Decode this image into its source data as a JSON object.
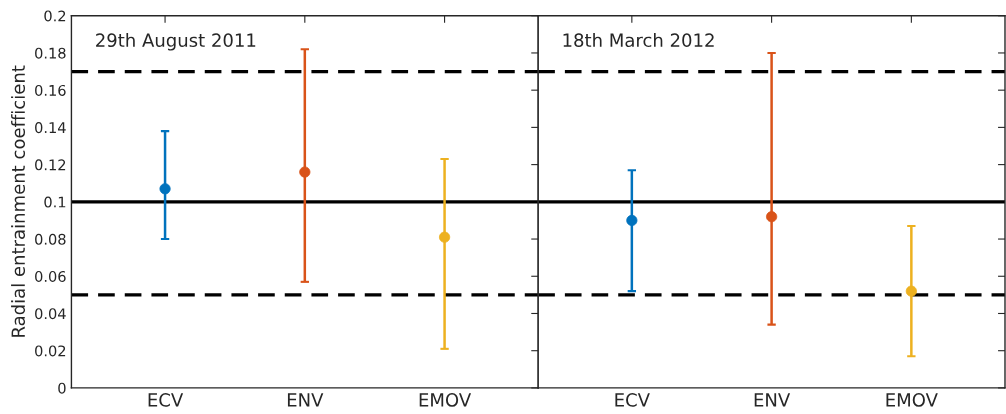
{
  "chart_data": [
    {
      "type": "scatter",
      "title": "29th August 2011",
      "ylabel": "Radial entrainment coefficient",
      "categories": [
        "ECV",
        "ENV",
        "EMOV"
      ],
      "series": [
        {
          "colors": [
            "#0072bd",
            "#d95319",
            "#edb120"
          ],
          "values": [
            0.107,
            0.116,
            0.081
          ],
          "errors": [
            [
              0.08,
              0.138
            ],
            [
              0.057,
              0.182
            ],
            [
              0.021,
              0.123
            ]
          ]
        }
      ],
      "ylim": [
        0,
        0.2
      ],
      "yticks": [
        0,
        0.02,
        0.04,
        0.06,
        0.08,
        0.1,
        0.12,
        0.14,
        0.16,
        0.18,
        0.2
      ],
      "ref_lines": [
        {
          "axis": "y",
          "value": 0.17,
          "color": "#000000",
          "line_style": "dashed"
        },
        {
          "axis": "y",
          "value": 0.1,
          "color": "#000000",
          "line_style": "solid"
        },
        {
          "axis": "y",
          "value": 0.05,
          "color": "#000000",
          "line_style": "dashed"
        }
      ],
      "marker": "circle",
      "grid": false,
      "legend": false
    },
    {
      "type": "scatter",
      "title": "18th March 2012",
      "categories": [
        "ECV",
        "ENV",
        "EMOV"
      ],
      "series": [
        {
          "colors": [
            "#0072bd",
            "#d95319",
            "#edb120"
          ],
          "values": [
            0.09,
            0.092,
            0.052
          ],
          "errors": [
            [
              0.052,
              0.117
            ],
            [
              0.034,
              0.18
            ],
            [
              0.017,
              0.087
            ]
          ]
        }
      ],
      "ylim": [
        0,
        0.2
      ],
      "yticks": [
        0,
        0.02,
        0.04,
        0.06,
        0.08,
        0.1,
        0.12,
        0.14,
        0.16,
        0.18,
        0.2
      ],
      "ref_lines": [
        {
          "axis": "y",
          "value": 0.17,
          "color": "#000000",
          "line_style": "dashed"
        },
        {
          "axis": "y",
          "value": 0.1,
          "color": "#000000",
          "line_style": "solid"
        },
        {
          "axis": "y",
          "value": 0.05,
          "color": "#000000",
          "line_style": "dashed"
        }
      ],
      "marker": "circle",
      "grid": false,
      "legend": false,
      "tick_labels": "x"
    }
  ]
}
